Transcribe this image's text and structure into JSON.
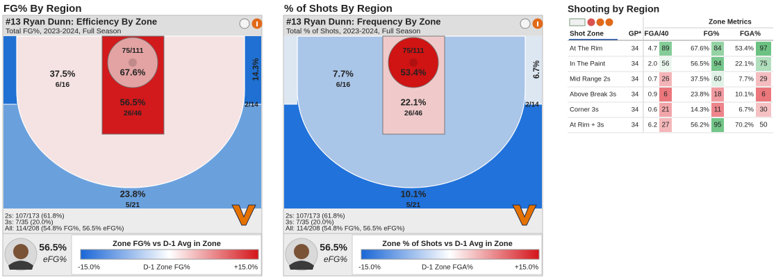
{
  "panels": [
    {
      "heading": "FG% By Region",
      "title": "#13 Ryan Dunn: Efficiency By Zone",
      "subtitle": "Total FG%, 2023-2024, Full Season",
      "zones": {
        "rim": {
          "pct": "67.6%",
          "count": "75/111",
          "color": "#e3a3a3"
        },
        "paint": {
          "pct": "56.5%",
          "count": "26/46",
          "color": "#d2191c"
        },
        "mid": {
          "pct": "37.5%",
          "count": "6/16",
          "color": "#f5e3e3"
        },
        "corner": {
          "pct": "14.3%",
          "count": "2/14",
          "color": "#1f70d2"
        },
        "three": {
          "pct": "23.8%",
          "count": "5/21",
          "color": "#6aa1dd"
        }
      },
      "summary": [
        "2s: 107/173 (61.8%)",
        "3s: 7/35 (20.0%)",
        "All: 114/208 (54.8% FG%, 56.5% eFG%)"
      ],
      "stat": "56.5%",
      "stat_label": "eFG%",
      "legend": {
        "title": "Zone FG% vs D-1 Avg in Zone",
        "min": "-15.0%",
        "axis_label": "D-1 Zone FG%",
        "max": "+15.0%"
      }
    },
    {
      "heading": "% of Shots By Region",
      "title": "#13 Ryan Dunn: Frequency By Zone",
      "subtitle": "Total % of Shots, 2023-2024, Full Season",
      "zones": {
        "rim": {
          "pct": "53.4%",
          "count": "75/111",
          "color": "#d01313"
        },
        "paint": {
          "pct": "22.1%",
          "count": "26/46",
          "color": "#f0caca"
        },
        "mid": {
          "pct": "7.7%",
          "count": "6/16",
          "color": "#a9c5e8"
        },
        "corner": {
          "pct": "6.7%",
          "count": "2/14",
          "color": "#dde7f2"
        },
        "three": {
          "pct": "10.1%",
          "count": "5/21",
          "color": "#2172da"
        }
      },
      "summary": [
        "2s: 107/173 (61.8%)",
        "3s: 7/35 (20.0%)",
        "All: 114/208 (54.8% FG%, 56.5% eFG%)"
      ],
      "stat": "56.5%",
      "stat_label": "eFG%",
      "legend": {
        "title": "Zone % of Shots vs D-1 Avg in Zone",
        "min": "-15.0%",
        "axis_label": "D-1 Zone FGA%",
        "max": "+15.0%"
      }
    }
  ],
  "table": {
    "title": "Shooting by Region",
    "group_header": "Zone Metrics",
    "columns": [
      "Shot Zone",
      "GP*",
      "FGA/40",
      "FG%",
      "FGA%"
    ],
    "rows": [
      [
        "At The Rim",
        34,
        "4.7",
        89,
        "67.6%",
        84,
        "53.4%",
        97
      ],
      [
        "In The Paint",
        34,
        "2.0",
        56,
        "56.5%",
        94,
        "22.1%",
        75
      ],
      [
        "Mid Range 2s",
        34,
        "0.7",
        26,
        "37.5%",
        60,
        "7.7%",
        29
      ],
      [
        "Above Break 3s",
        34,
        "0.9",
        6,
        "23.8%",
        18,
        "10.1%",
        6
      ],
      [
        "Corner 3s",
        34,
        "0.6",
        21,
        "14.3%",
        11,
        "6.7%",
        30
      ],
      [
        "At Rim + 3s",
        34,
        "6.2",
        27,
        "56.2%",
        95,
        "70.2%",
        50
      ]
    ]
  }
}
